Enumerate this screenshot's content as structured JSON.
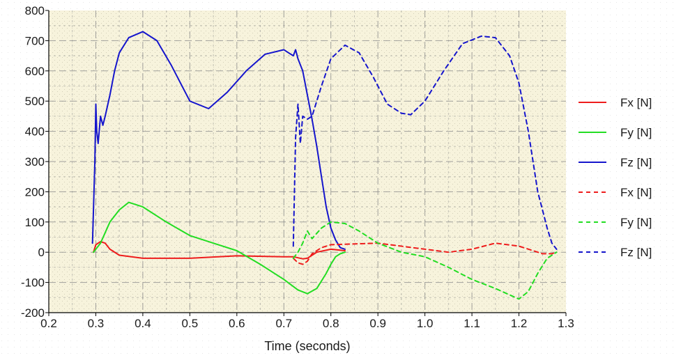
{
  "chart_data": {
    "type": "line",
    "title": "",
    "xlabel": "Time (seconds)",
    "ylabel": "",
    "xlim": [
      0.2,
      1.3
    ],
    "ylim": [
      -200,
      800
    ],
    "x_ticks": [
      "0.2",
      "0.3",
      "0.4",
      "0.5",
      "0.6",
      "0.7",
      "0.8",
      "0.9",
      "1.0",
      "1.1",
      "1.2",
      "1.3"
    ],
    "y_ticks": [
      "800",
      "700",
      "600",
      "500",
      "400",
      "300",
      "200",
      "100",
      "0",
      "-100",
      "-200"
    ],
    "grid": true,
    "legend_position": "right",
    "colors": {
      "plot_background": "#f7f3dc",
      "page_background": "#ffffff",
      "grid": "#8a8a8a",
      "red": "#ee1c1c",
      "green": "#22dd22",
      "blue": "#1515cc"
    },
    "series": [
      {
        "name": "Fx [N]",
        "color": "#ee1c1c",
        "dash": false,
        "x": [
          0.295,
          0.3,
          0.31,
          0.32,
          0.33,
          0.35,
          0.4,
          0.5,
          0.6,
          0.7,
          0.72,
          0.74,
          0.75,
          0.77,
          0.8,
          0.83
        ],
        "y": [
          0,
          25,
          35,
          30,
          10,
          -10,
          -20,
          -20,
          -12,
          -15,
          -15,
          -22,
          -20,
          0,
          10,
          5
        ]
      },
      {
        "name": "Fy [N]",
        "color": "#22dd22",
        "dash": false,
        "x": [
          0.295,
          0.31,
          0.33,
          0.35,
          0.37,
          0.4,
          0.45,
          0.5,
          0.55,
          0.6,
          0.65,
          0.7,
          0.73,
          0.75,
          0.77,
          0.79,
          0.8,
          0.81,
          0.82,
          0.83
        ],
        "y": [
          0,
          30,
          100,
          140,
          165,
          150,
          100,
          55,
          30,
          5,
          -40,
          -90,
          -125,
          -137,
          -120,
          -70,
          -40,
          -15,
          -5,
          0
        ]
      },
      {
        "name": "Fz [N]",
        "color": "#1515cc",
        "dash": false,
        "x": [
          0.293,
          0.295,
          0.298,
          0.3,
          0.302,
          0.305,
          0.31,
          0.315,
          0.32,
          0.33,
          0.34,
          0.35,
          0.37,
          0.4,
          0.43,
          0.46,
          0.5,
          0.54,
          0.58,
          0.62,
          0.66,
          0.7,
          0.71,
          0.72,
          0.725,
          0.73,
          0.74,
          0.75,
          0.76,
          0.77,
          0.78,
          0.79,
          0.8,
          0.81,
          0.82,
          0.83
        ],
        "y": [
          30,
          140,
          300,
          490,
          400,
          360,
          450,
          420,
          450,
          520,
          600,
          660,
          710,
          730,
          700,
          620,
          500,
          475,
          530,
          600,
          655,
          670,
          660,
          650,
          670,
          640,
          600,
          520,
          440,
          350,
          250,
          150,
          80,
          40,
          15,
          10
        ]
      },
      {
        "name": "Fx [N]",
        "color": "#ee1c1c",
        "dash": true,
        "x": [
          0.72,
          0.73,
          0.74,
          0.75,
          0.76,
          0.78,
          0.8,
          0.9,
          1.0,
          1.05,
          1.1,
          1.15,
          1.2,
          1.23,
          1.25,
          1.27,
          1.28
        ],
        "y": [
          -20,
          -35,
          -40,
          -30,
          -5,
          15,
          25,
          30,
          10,
          0,
          10,
          30,
          20,
          5,
          -5,
          -5,
          0
        ]
      },
      {
        "name": "Fy [N]",
        "color": "#22dd22",
        "dash": true,
        "x": [
          0.72,
          0.73,
          0.74,
          0.75,
          0.76,
          0.78,
          0.8,
          0.83,
          0.86,
          0.9,
          0.95,
          1.0,
          1.05,
          1.1,
          1.15,
          1.2,
          1.22,
          1.24,
          1.26,
          1.28
        ],
        "y": [
          -20,
          0,
          30,
          70,
          45,
          80,
          100,
          95,
          70,
          30,
          0,
          -15,
          -50,
          -90,
          -120,
          -155,
          -130,
          -70,
          -20,
          0
        ]
      },
      {
        "name": "Fz [N]",
        "color": "#1515cc",
        "dash": true,
        "x": [
          0.72,
          0.725,
          0.73,
          0.735,
          0.74,
          0.75,
          0.76,
          0.78,
          0.8,
          0.83,
          0.86,
          0.89,
          0.92,
          0.95,
          0.97,
          1.0,
          1.04,
          1.08,
          1.12,
          1.15,
          1.18,
          1.2,
          1.22,
          1.24,
          1.25,
          1.26,
          1.27,
          1.28
        ],
        "y": [
          20,
          380,
          490,
          360,
          450,
          440,
          450,
          550,
          640,
          685,
          660,
          580,
          490,
          460,
          455,
          500,
          600,
          690,
          715,
          710,
          650,
          560,
          400,
          200,
          140,
          80,
          30,
          10
        ]
      }
    ]
  }
}
